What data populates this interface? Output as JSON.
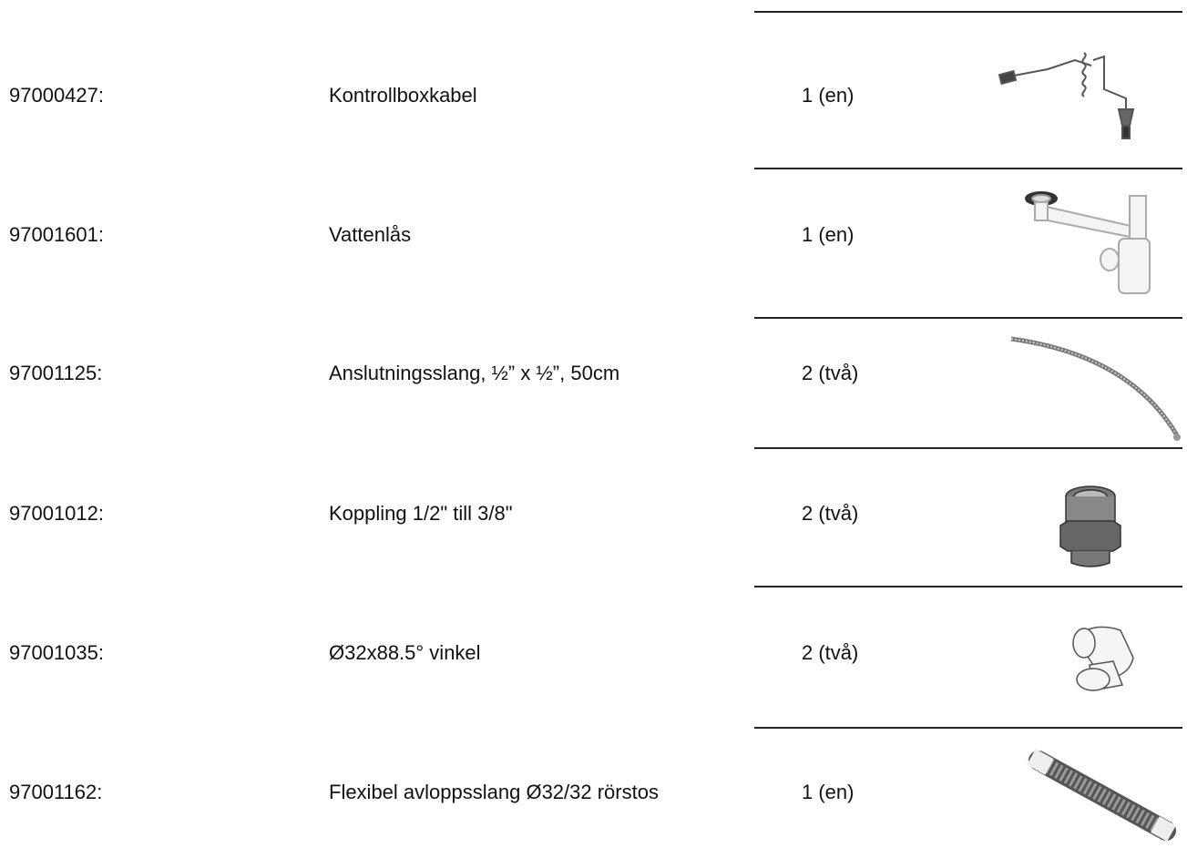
{
  "rows": [
    {
      "number": "97000427:",
      "name": "Kontrollboxkabel",
      "quantity": "1 (en)"
    },
    {
      "number": "97001601:",
      "name": "Vattenlås",
      "quantity": "1 (en)"
    },
    {
      "number": "97001125:",
      "name": "Anslutningsslang, ½” x ½”, 50cm",
      "quantity": "2 (två)"
    },
    {
      "number": "97001012:",
      "name": "Koppling 1/2\" till 3/8\"",
      "quantity": "2 (två)"
    },
    {
      "number": "97001035:",
      "name": "Ø32x88.5° vinkel",
      "quantity": "2 (två)"
    },
    {
      "number": "97001162:",
      "name": "Flexibel avloppsslang Ø32/32 rörstos",
      "quantity": "1 (en)"
    }
  ]
}
